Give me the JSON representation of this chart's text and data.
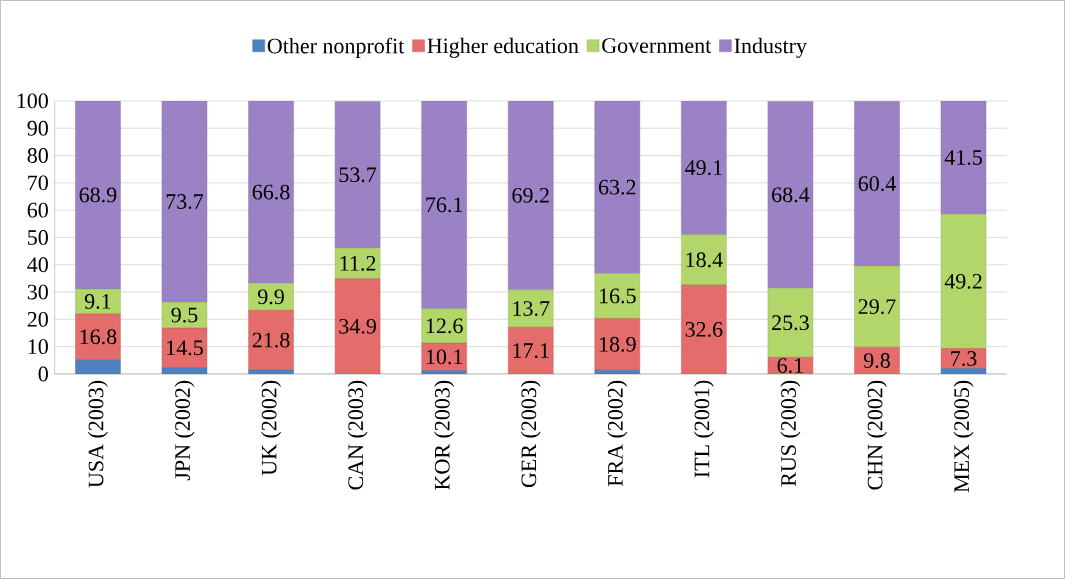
{
  "chart_data": {
    "type": "bar",
    "stacked": true,
    "categories": [
      "USA (2003)",
      "JPN (2002)",
      "UK (2002)",
      "CAN (2003)",
      "KOR (2003)",
      "GER (2003)",
      "FRA (2002)",
      "ITL (2001)",
      "RUS (2003)",
      "CHN (2002)",
      "MEX (2005)"
    ],
    "series": [
      {
        "name": "Other nonprofit",
        "color": "#4f81bd",
        "values": [
          5.2,
          2.3,
          1.5,
          null,
          1.2,
          0,
          1.4,
          0,
          null,
          null,
          2.0
        ]
      },
      {
        "name": "Higher education",
        "color": "#e46c6a",
        "values": [
          16.8,
          14.5,
          21.8,
          34.9,
          10.1,
          17.1,
          18.9,
          32.6,
          6.1,
          9.8,
          7.3
        ],
        "value_labels": [
          "16.8",
          "14.5",
          "21.8",
          "34.9",
          "10.1",
          "17.1",
          "18.9",
          "32.6",
          "6.1",
          "9.8",
          "7.3"
        ]
      },
      {
        "name": "Government",
        "color": "#b3d66a",
        "values": [
          9.1,
          9.5,
          9.9,
          11.2,
          12.6,
          13.7,
          16.5,
          18.4,
          25.3,
          29.7,
          49.2
        ],
        "value_labels": [
          "9.1",
          "9.5",
          "9.9",
          "11.2",
          "12.6",
          "13.7",
          "16.5",
          "18.4",
          "25.3",
          "29.7",
          "49.2"
        ]
      },
      {
        "name": "Industry",
        "color": "#9b82c4",
        "values": [
          68.9,
          73.7,
          66.8,
          53.7,
          76.1,
          69.2,
          63.2,
          49.1,
          68.4,
          60.4,
          41.5
        ],
        "value_labels": [
          "68.9",
          "73.7",
          "66.8",
          "53.7",
          "76.1",
          "69.2",
          "63.2",
          "49.1",
          "68.4",
          "60.4",
          "41.5"
        ]
      }
    ],
    "ylim": [
      0,
      100
    ],
    "yticks": [
      0,
      10,
      20,
      30,
      40,
      50,
      60,
      70,
      80,
      90,
      100
    ],
    "grid": "y",
    "legend": "top"
  }
}
